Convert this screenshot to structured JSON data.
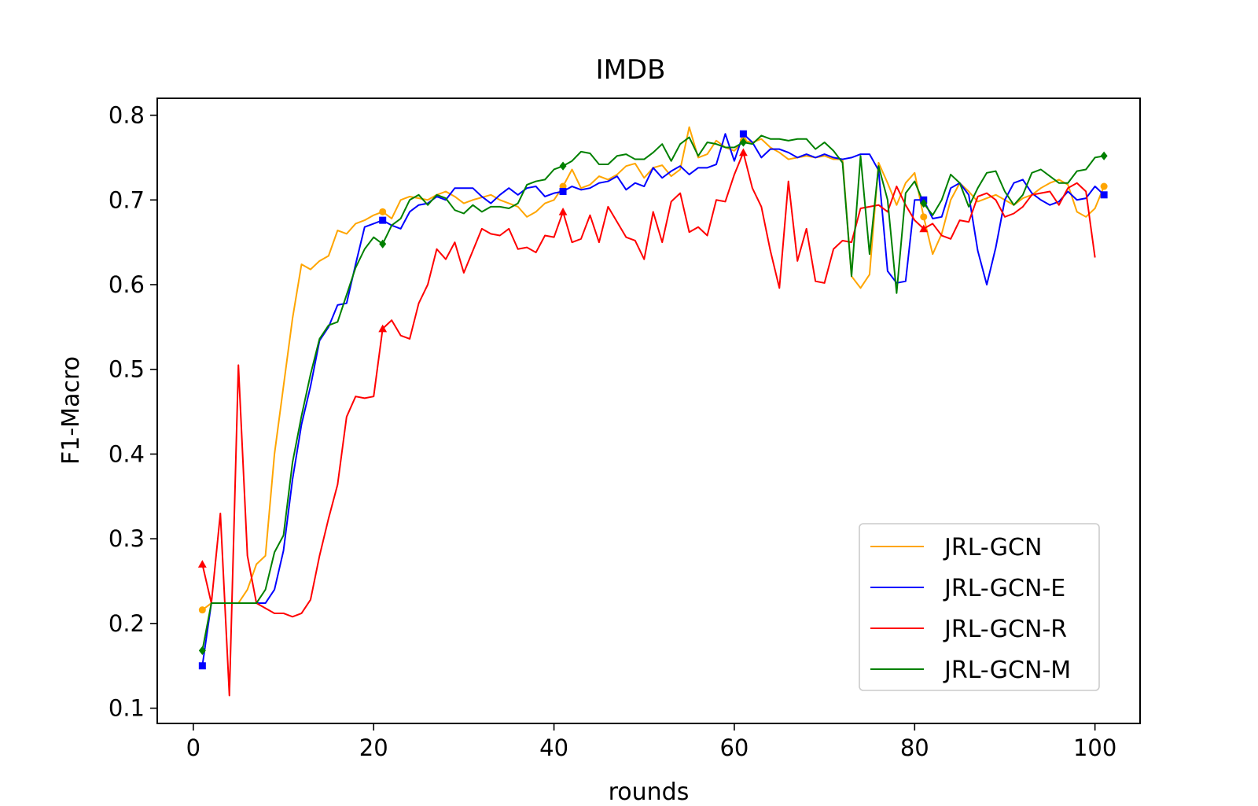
{
  "chart_data": {
    "type": "line",
    "title": "IMDB",
    "xlabel": "rounds",
    "ylabel": "F1-Macro",
    "xlim": [
      -4,
      105
    ],
    "ylim": [
      0.082,
      0.82
    ],
    "xticks": [
      0,
      20,
      40,
      60,
      80,
      100
    ],
    "yticks": [
      0.1,
      0.2,
      0.3,
      0.4,
      0.5,
      0.6,
      0.7,
      0.8
    ],
    "xtick_labels": [
      "0",
      "20",
      "40",
      "60",
      "80",
      "100"
    ],
    "ytick_labels": [
      "0.1",
      "0.2",
      "0.3",
      "0.4",
      "0.5",
      "0.6",
      "0.7",
      "0.8"
    ],
    "grid": false,
    "legend_position": "bottom-right",
    "marker_every": 20,
    "series": [
      {
        "name": "JRL-GCN",
        "color": "#FFA500",
        "marker": "circle",
        "values": [
          0.216,
          0.224,
          0.224,
          0.224,
          0.224,
          0.24,
          0.27,
          0.28,
          0.4,
          0.48,
          0.56,
          0.624,
          0.618,
          0.628,
          0.634,
          0.664,
          0.66,
          0.672,
          0.676,
          0.682,
          0.686,
          0.678,
          0.7,
          0.704,
          0.702,
          0.7,
          0.706,
          0.71,
          0.704,
          0.696,
          0.7,
          0.703,
          0.706,
          0.7,
          0.696,
          0.692,
          0.68,
          0.686,
          0.696,
          0.7,
          0.716,
          0.736,
          0.714,
          0.718,
          0.728,
          0.724,
          0.73,
          0.74,
          0.743,
          0.726,
          0.738,
          0.741,
          0.728,
          0.736,
          0.786,
          0.75,
          0.754,
          0.77,
          0.762,
          0.758,
          0.77,
          0.768,
          0.772,
          0.762,
          0.756,
          0.748,
          0.75,
          0.752,
          0.75,
          0.752,
          0.748,
          0.748,
          0.61,
          0.596,
          0.612,
          0.744,
          0.72,
          0.694,
          0.72,
          0.732,
          0.68,
          0.636,
          0.66,
          0.7,
          0.72,
          0.71,
          0.698,
          0.702,
          0.706,
          0.7,
          0.694,
          0.702,
          0.706,
          0.714,
          0.72,
          0.724,
          0.718,
          0.686,
          0.68,
          0.69,
          0.716
        ]
      },
      {
        "name": "JRL-GCN-E",
        "color": "#0000FF",
        "marker": "square",
        "values": [
          0.15,
          0.224,
          0.224,
          0.224,
          0.224,
          0.224,
          0.224,
          0.224,
          0.24,
          0.286,
          0.37,
          0.435,
          0.48,
          0.534,
          0.55,
          0.576,
          0.578,
          0.624,
          0.668,
          0.672,
          0.676,
          0.67,
          0.666,
          0.686,
          0.694,
          0.696,
          0.704,
          0.7,
          0.714,
          0.714,
          0.714,
          0.704,
          0.696,
          0.706,
          0.714,
          0.706,
          0.714,
          0.716,
          0.704,
          0.708,
          0.71,
          0.716,
          0.712,
          0.714,
          0.72,
          0.722,
          0.728,
          0.712,
          0.72,
          0.716,
          0.738,
          0.726,
          0.734,
          0.74,
          0.73,
          0.738,
          0.738,
          0.742,
          0.778,
          0.746,
          0.778,
          0.768,
          0.75,
          0.76,
          0.76,
          0.756,
          0.75,
          0.754,
          0.75,
          0.754,
          0.75,
          0.748,
          0.75,
          0.754,
          0.754,
          0.735,
          0.616,
          0.602,
          0.604,
          0.7,
          0.7,
          0.678,
          0.68,
          0.714,
          0.72,
          0.706,
          0.64,
          0.6,
          0.644,
          0.7,
          0.72,
          0.724,
          0.708,
          0.7,
          0.694,
          0.698,
          0.71,
          0.7,
          0.702,
          0.716,
          0.706
        ]
      },
      {
        "name": "JRL-GCN-R",
        "color": "#FF0000",
        "marker": "triangle",
        "values": [
          0.27,
          0.224,
          0.33,
          0.115,
          0.505,
          0.28,
          0.224,
          0.218,
          0.212,
          0.212,
          0.208,
          0.212,
          0.228,
          0.28,
          0.324,
          0.364,
          0.444,
          0.468,
          0.466,
          0.468,
          0.548,
          0.558,
          0.54,
          0.536,
          0.578,
          0.6,
          0.642,
          0.63,
          0.65,
          0.614,
          0.64,
          0.666,
          0.66,
          0.658,
          0.666,
          0.642,
          0.644,
          0.638,
          0.658,
          0.656,
          0.686,
          0.65,
          0.654,
          0.682,
          0.65,
          0.692,
          0.674,
          0.656,
          0.652,
          0.63,
          0.686,
          0.65,
          0.698,
          0.708,
          0.662,
          0.668,
          0.658,
          0.7,
          0.698,
          0.73,
          0.756,
          0.714,
          0.692,
          0.64,
          0.596,
          0.722,
          0.628,
          0.666,
          0.604,
          0.602,
          0.642,
          0.652,
          0.65,
          0.69,
          0.692,
          0.694,
          0.686,
          0.716,
          0.694,
          0.676,
          0.666,
          0.672,
          0.658,
          0.654,
          0.676,
          0.674,
          0.704,
          0.708,
          0.7,
          0.68,
          0.684,
          0.692,
          0.706,
          0.708,
          0.71,
          0.694,
          0.714,
          0.72,
          0.71,
          0.632
        ]
      },
      {
        "name": "JRL-GCN-M",
        "color": "#008000",
        "marker": "diamond",
        "values": [
          0.168,
          0.224,
          0.224,
          0.224,
          0.224,
          0.224,
          0.224,
          0.24,
          0.284,
          0.304,
          0.39,
          0.445,
          0.494,
          0.536,
          0.552,
          0.556,
          0.588,
          0.62,
          0.642,
          0.656,
          0.648,
          0.67,
          0.678,
          0.7,
          0.706,
          0.694,
          0.706,
          0.702,
          0.688,
          0.684,
          0.694,
          0.686,
          0.692,
          0.692,
          0.69,
          0.696,
          0.718,
          0.722,
          0.724,
          0.736,
          0.74,
          0.746,
          0.757,
          0.755,
          0.742,
          0.742,
          0.752,
          0.754,
          0.748,
          0.748,
          0.756,
          0.766,
          0.746,
          0.766,
          0.774,
          0.752,
          0.768,
          0.766,
          0.762,
          0.762,
          0.768,
          0.766,
          0.776,
          0.772,
          0.772,
          0.77,
          0.772,
          0.772,
          0.76,
          0.768,
          0.758,
          0.744,
          0.61,
          0.752,
          0.636,
          0.74,
          0.7,
          0.59,
          0.708,
          0.722,
          0.696,
          0.682,
          0.7,
          0.73,
          0.72,
          0.692,
          0.714,
          0.732,
          0.734,
          0.71,
          0.694,
          0.706,
          0.732,
          0.736,
          0.728,
          0.72,
          0.72,
          0.734,
          0.736,
          0.75,
          0.752
        ]
      }
    ]
  }
}
